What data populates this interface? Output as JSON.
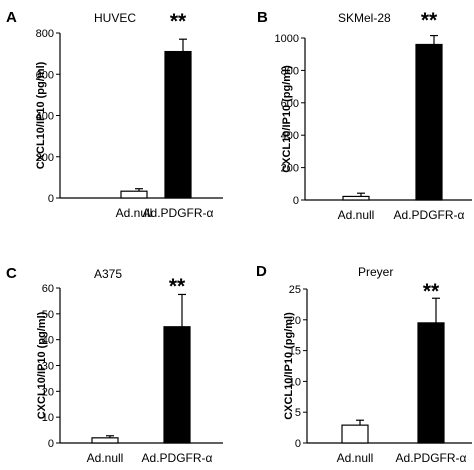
{
  "chart_data": [
    {
      "type": "bar",
      "panel_label": "A",
      "title": "HUVEC",
      "ylabel": "CXCL10/IP10 (pg/ml)",
      "categories": [
        "Ad.null",
        "Ad.PDGFR-α"
      ],
      "values": [
        33,
        710
      ],
      "errors": [
        12,
        60
      ],
      "bar_colors": [
        "#ffffff",
        "#000000"
      ],
      "significance": [
        "",
        "**"
      ],
      "ylim": [
        0,
        800
      ],
      "yticks": [
        0,
        200,
        400,
        600,
        800
      ]
    },
    {
      "type": "bar",
      "panel_label": "B",
      "title": "SKMel-28",
      "ylabel": "CXCL10/IP10 (pg/ml)",
      "categories": [
        "Ad.null",
        "Ad.PDGFR-α"
      ],
      "values": [
        22,
        960
      ],
      "errors": [
        20,
        55
      ],
      "bar_colors": [
        "#ffffff",
        "#000000"
      ],
      "significance": [
        "",
        "**"
      ],
      "ylim": [
        0,
        1000
      ],
      "yticks": [
        0,
        200,
        400,
        600,
        800,
        1000
      ]
    },
    {
      "type": "bar",
      "panel_label": "C",
      "title": "A375",
      "ylabel": "CXCL10/IP10 (pg/ml)",
      "categories": [
        "Ad.null",
        "Ad.PDGFR-α"
      ],
      "values": [
        2,
        45
      ],
      "errors": [
        0.8,
        12.5
      ],
      "bar_colors": [
        "#ffffff",
        "#000000"
      ],
      "significance": [
        "",
        "**"
      ],
      "ylim": [
        0,
        60
      ],
      "yticks": [
        0,
        10,
        20,
        30,
        40,
        50,
        60
      ]
    },
    {
      "type": "bar",
      "panel_label": "D",
      "title": "Preyer",
      "ylabel": "CXCL10/IP10 (pg/ml)",
      "categories": [
        "Ad.null",
        "Ad.PDGFR-α"
      ],
      "values": [
        2.9,
        19.5
      ],
      "errors": [
        0.8,
        4
      ],
      "bar_colors": [
        "#ffffff",
        "#000000"
      ],
      "significance": [
        "",
        "**"
      ],
      "ylim": [
        0,
        25
      ],
      "yticks": [
        0,
        5,
        10,
        15,
        20,
        25
      ]
    }
  ]
}
